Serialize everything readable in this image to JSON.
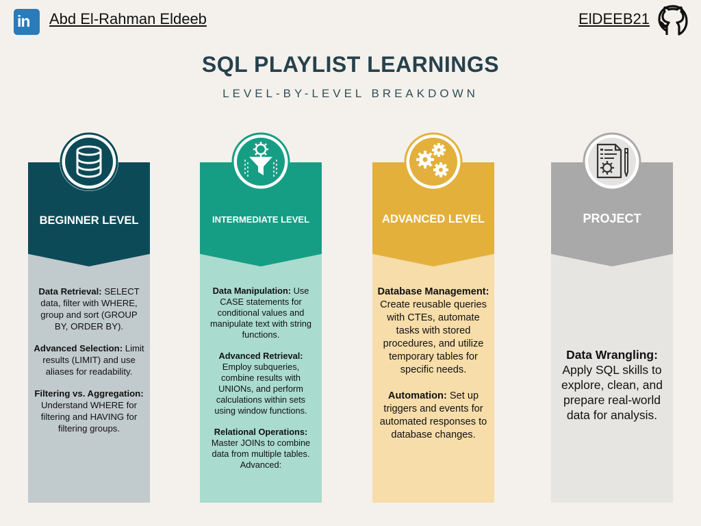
{
  "header": {
    "author": "Abd El-Rahman Eldeeb",
    "handle": "ElDEEB21",
    "linkedin_glyph": "in",
    "linkedin_icon": "linkedin-icon",
    "github_icon": "github-icon"
  },
  "title": "SQL PLAYLIST LEARNINGS",
  "subtitle": "LEVEL-BY-LEVEL BREAKDOWN",
  "colors": {
    "beginner_head": "#0c4a57",
    "beginner_body": "#c1cacd",
    "intermediate_head": "#169e85",
    "intermediate_body": "#aadbcf",
    "advanced_head": "#e3b03c",
    "advanced_body": "#f6ddaa",
    "project_head": "#a9a9a9",
    "project_body": "#e7e5e2"
  },
  "columns": [
    {
      "label": "BEGINNER LEVEL",
      "icon": "database-icon",
      "blocks": [
        {
          "heading": "Data Retrieval:",
          "text": " SELECT data, filter with WHERE, group and sort (GROUP BY, ORDER BY)."
        },
        {
          "heading": "Advanced Selection:",
          "text": " Limit results (LIMIT) and use aliases for readability."
        },
        {
          "heading": "Filtering vs. Aggregation:",
          "text": " Understand WHERE for filtering and HAVING for filtering groups."
        }
      ]
    },
    {
      "label": "INTERMEDIATE LEVEL",
      "icon": "funnel-gear-icon",
      "blocks": [
        {
          "heading": "Data Manipulation:",
          "text": " Use CASE statements for conditional values and manipulate text with string functions."
        },
        {
          "heading": "Advanced Retrieval:",
          "text": " Employ subqueries, combine results with UNIONs, and perform calculations within sets using window functions."
        },
        {
          "heading": "Relational Operations:",
          "text": " Master JOINs to combine data from multiple tables. Advanced:"
        }
      ]
    },
    {
      "label": "ADVANCED LEVEL",
      "icon": "gears-icon",
      "blocks": [
        {
          "heading": "Database Management:",
          "text": " Create reusable queries with CTEs, automate tasks with stored procedures, and utilize temporary tables for specific needs."
        },
        {
          "heading": "Automation:",
          "text": " Set up triggers and events for automated responses to database changes."
        }
      ]
    },
    {
      "label": "PROJECT",
      "icon": "document-gear-icon",
      "blocks": [
        {
          "heading": "Data Wrangling:",
          "text": " Apply SQL skills to explore, clean, and prepare real-world data for analysis."
        }
      ]
    }
  ]
}
